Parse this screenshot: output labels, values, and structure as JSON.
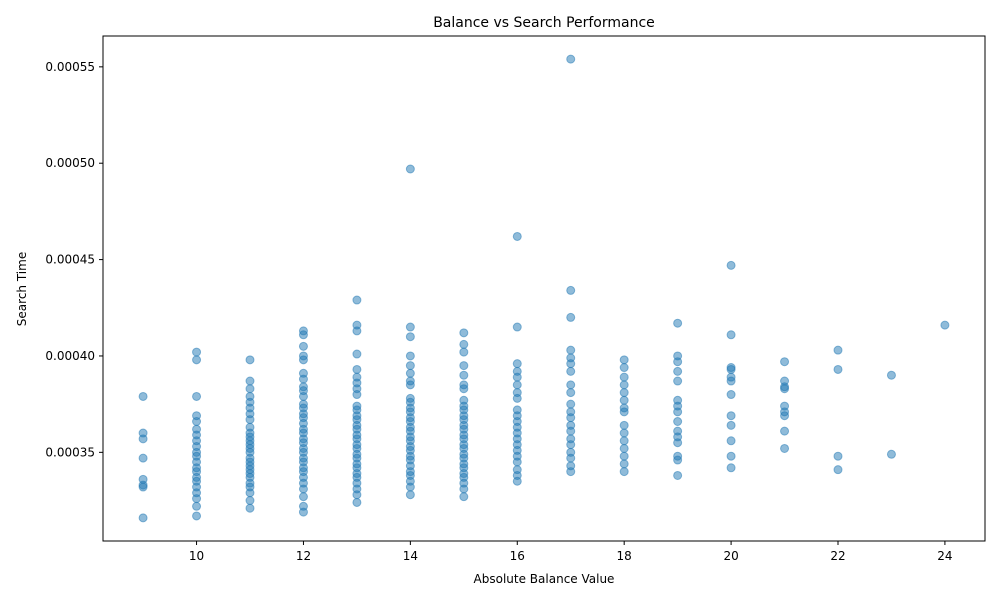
{
  "chart_data": {
    "type": "scatter",
    "title": "Balance vs Search Performance",
    "xlabel": "Absolute Balance Value",
    "ylabel": "Search Time",
    "xlim": [
      8.25,
      24.75
    ],
    "ylim": [
      0.000304,
      0.000566
    ],
    "xticks": [
      10,
      12,
      14,
      16,
      18,
      20,
      22,
      24
    ],
    "xtick_labels": [
      "10",
      "12",
      "14",
      "16",
      "18",
      "20",
      "22",
      "24"
    ],
    "yticks": [
      0.00035,
      0.0004,
      0.00045,
      0.0005,
      0.00055
    ],
    "ytick_labels": [
      "0.00035",
      "0.00040",
      "0.00045",
      "0.00050",
      "0.00055"
    ],
    "grid": false,
    "legend": "none",
    "marker_color": "#1f77b4",
    "marker_alpha": 0.5,
    "points": [
      [
        9,
        0.000316
      ],
      [
        9,
        0.000332
      ],
      [
        9,
        0.000333
      ],
      [
        9,
        0.000336
      ],
      [
        9,
        0.000347
      ],
      [
        9,
        0.000357
      ],
      [
        9,
        0.00036
      ],
      [
        9,
        0.000379
      ],
      [
        10,
        0.000317
      ],
      [
        10,
        0.000322
      ],
      [
        10,
        0.000326
      ],
      [
        10,
        0.000329
      ],
      [
        10,
        0.000332
      ],
      [
        10,
        0.000335
      ],
      [
        10,
        0.000337
      ],
      [
        10,
        0.00034
      ],
      [
        10,
        0.000342
      ],
      [
        10,
        0.000345
      ],
      [
        10,
        0.000348
      ],
      [
        10,
        0.00035
      ],
      [
        10,
        0.000353
      ],
      [
        10,
        0.000356
      ],
      [
        10,
        0.000359
      ],
      [
        10,
        0.000362
      ],
      [
        10,
        0.000366
      ],
      [
        10,
        0.000369
      ],
      [
        10,
        0.000379
      ],
      [
        10,
        0.000398
      ],
      [
        10,
        0.000402
      ],
      [
        11,
        0.000321
      ],
      [
        11,
        0.000325
      ],
      [
        11,
        0.000329
      ],
      [
        11,
        0.000332
      ],
      [
        11,
        0.000334
      ],
      [
        11,
        0.000337
      ],
      [
        11,
        0.000339
      ],
      [
        11,
        0.000341
      ],
      [
        11,
        0.000343
      ],
      [
        11,
        0.000345
      ],
      [
        11,
        0.000347
      ],
      [
        11,
        0.00035
      ],
      [
        11,
        0.000352
      ],
      [
        11,
        0.000354
      ],
      [
        11,
        0.000356
      ],
      [
        11,
        0.000358
      ],
      [
        11,
        0.00036
      ],
      [
        11,
        0.000363
      ],
      [
        11,
        0.000367
      ],
      [
        11,
        0.00037
      ],
      [
        11,
        0.000373
      ],
      [
        11,
        0.000376
      ],
      [
        11,
        0.000379
      ],
      [
        11,
        0.000383
      ],
      [
        11,
        0.000387
      ],
      [
        11,
        0.000398
      ],
      [
        12,
        0.000319
      ],
      [
        12,
        0.000322
      ],
      [
        12,
        0.000327
      ],
      [
        12,
        0.000331
      ],
      [
        12,
        0.000334
      ],
      [
        12,
        0.000337
      ],
      [
        12,
        0.00034
      ],
      [
        12,
        0.000342
      ],
      [
        12,
        0.000345
      ],
      [
        12,
        0.000347
      ],
      [
        12,
        0.00035
      ],
      [
        12,
        0.000352
      ],
      [
        12,
        0.000355
      ],
      [
        12,
        0.000357
      ],
      [
        12,
        0.00036
      ],
      [
        12,
        0.000362
      ],
      [
        12,
        0.000365
      ],
      [
        12,
        0.000368
      ],
      [
        12,
        0.00037
      ],
      [
        12,
        0.000373
      ],
      [
        12,
        0.000375
      ],
      [
        12,
        0.000379
      ],
      [
        12,
        0.000382
      ],
      [
        12,
        0.000384
      ],
      [
        12,
        0.000388
      ],
      [
        12,
        0.000391
      ],
      [
        12,
        0.000398
      ],
      [
        12,
        0.0004
      ],
      [
        12,
        0.000405
      ],
      [
        12,
        0.000411
      ],
      [
        12,
        0.000413
      ],
      [
        13,
        0.000324
      ],
      [
        13,
        0.000328
      ],
      [
        13,
        0.000331
      ],
      [
        13,
        0.000334
      ],
      [
        13,
        0.000337
      ],
      [
        13,
        0.000339
      ],
      [
        13,
        0.000342
      ],
      [
        13,
        0.000344
      ],
      [
        13,
        0.000347
      ],
      [
        13,
        0.000349
      ],
      [
        13,
        0.000352
      ],
      [
        13,
        0.000354
      ],
      [
        13,
        0.000357
      ],
      [
        13,
        0.000359
      ],
      [
        13,
        0.000362
      ],
      [
        13,
        0.000364
      ],
      [
        13,
        0.000367
      ],
      [
        13,
        0.000369
      ],
      [
        13,
        0.000372
      ],
      [
        13,
        0.000374
      ],
      [
        13,
        0.00038
      ],
      [
        13,
        0.000383
      ],
      [
        13,
        0.000386
      ],
      [
        13,
        0.000389
      ],
      [
        13,
        0.000393
      ],
      [
        13,
        0.000401
      ],
      [
        13,
        0.000413
      ],
      [
        13,
        0.000416
      ],
      [
        13,
        0.000429
      ],
      [
        14,
        0.000328
      ],
      [
        14,
        0.000332
      ],
      [
        14,
        0.000335
      ],
      [
        14,
        0.000338
      ],
      [
        14,
        0.00034
      ],
      [
        14,
        0.000343
      ],
      [
        14,
        0.000346
      ],
      [
        14,
        0.000348
      ],
      [
        14,
        0.000351
      ],
      [
        14,
        0.000353
      ],
      [
        14,
        0.000356
      ],
      [
        14,
        0.000358
      ],
      [
        14,
        0.000361
      ],
      [
        14,
        0.000363
      ],
      [
        14,
        0.000366
      ],
      [
        14,
        0.000368
      ],
      [
        14,
        0.000371
      ],
      [
        14,
        0.000373
      ],
      [
        14,
        0.000376
      ],
      [
        14,
        0.000378
      ],
      [
        14,
        0.000385
      ],
      [
        14,
        0.000387
      ],
      [
        14,
        0.000391
      ],
      [
        14,
        0.000395
      ],
      [
        14,
        0.0004
      ],
      [
        14,
        0.00041
      ],
      [
        14,
        0.000415
      ],
      [
        14,
        0.000497
      ],
      [
        15,
        0.000327
      ],
      [
        15,
        0.000331
      ],
      [
        15,
        0.000334
      ],
      [
        15,
        0.000337
      ],
      [
        15,
        0.000339
      ],
      [
        15,
        0.000342
      ],
      [
        15,
        0.000344
      ],
      [
        15,
        0.000347
      ],
      [
        15,
        0.000349
      ],
      [
        15,
        0.000352
      ],
      [
        15,
        0.000354
      ],
      [
        15,
        0.000357
      ],
      [
        15,
        0.000359
      ],
      [
        15,
        0.000362
      ],
      [
        15,
        0.000364
      ],
      [
        15,
        0.000367
      ],
      [
        15,
        0.000369
      ],
      [
        15,
        0.000372
      ],
      [
        15,
        0.000374
      ],
      [
        15,
        0.000377
      ],
      [
        15,
        0.000383
      ],
      [
        15,
        0.000385
      ],
      [
        15,
        0.00039
      ],
      [
        15,
        0.000395
      ],
      [
        15,
        0.000402
      ],
      [
        15,
        0.000406
      ],
      [
        15,
        0.000412
      ],
      [
        16,
        0.000335
      ],
      [
        16,
        0.000338
      ],
      [
        16,
        0.000341
      ],
      [
        16,
        0.000345
      ],
      [
        16,
        0.000348
      ],
      [
        16,
        0.000351
      ],
      [
        16,
        0.000354
      ],
      [
        16,
        0.000357
      ],
      [
        16,
        0.00036
      ],
      [
        16,
        0.000363
      ],
      [
        16,
        0.000366
      ],
      [
        16,
        0.000369
      ],
      [
        16,
        0.000372
      ],
      [
        16,
        0.000378
      ],
      [
        16,
        0.000381
      ],
      [
        16,
        0.000385
      ],
      [
        16,
        0.000389
      ],
      [
        16,
        0.000392
      ],
      [
        16,
        0.000396
      ],
      [
        16,
        0.000415
      ],
      [
        16,
        0.000462
      ],
      [
        17,
        0.00034
      ],
      [
        17,
        0.000343
      ],
      [
        17,
        0.000347
      ],
      [
        17,
        0.00035
      ],
      [
        17,
        0.000354
      ],
      [
        17,
        0.000357
      ],
      [
        17,
        0.000361
      ],
      [
        17,
        0.000364
      ],
      [
        17,
        0.000368
      ],
      [
        17,
        0.000371
      ],
      [
        17,
        0.000375
      ],
      [
        17,
        0.000381
      ],
      [
        17,
        0.000385
      ],
      [
        17,
        0.000392
      ],
      [
        17,
        0.000396
      ],
      [
        17,
        0.000399
      ],
      [
        17,
        0.000403
      ],
      [
        17,
        0.00042
      ],
      [
        17,
        0.000434
      ],
      [
        17,
        0.000554
      ],
      [
        18,
        0.00034
      ],
      [
        18,
        0.000344
      ],
      [
        18,
        0.000348
      ],
      [
        18,
        0.000352
      ],
      [
        18,
        0.000356
      ],
      [
        18,
        0.00036
      ],
      [
        18,
        0.000364
      ],
      [
        18,
        0.000371
      ],
      [
        18,
        0.000373
      ],
      [
        18,
        0.000377
      ],
      [
        18,
        0.000381
      ],
      [
        18,
        0.000385
      ],
      [
        18,
        0.000389
      ],
      [
        18,
        0.000394
      ],
      [
        18,
        0.000398
      ],
      [
        19,
        0.000338
      ],
      [
        19,
        0.000346
      ],
      [
        19,
        0.000348
      ],
      [
        19,
        0.000355
      ],
      [
        19,
        0.000358
      ],
      [
        19,
        0.000361
      ],
      [
        19,
        0.000366
      ],
      [
        19,
        0.000371
      ],
      [
        19,
        0.000374
      ],
      [
        19,
        0.000377
      ],
      [
        19,
        0.000387
      ],
      [
        19,
        0.000392
      ],
      [
        19,
        0.000397
      ],
      [
        19,
        0.0004
      ],
      [
        19,
        0.000417
      ],
      [
        20,
        0.000342
      ],
      [
        20,
        0.000348
      ],
      [
        20,
        0.000356
      ],
      [
        20,
        0.000364
      ],
      [
        20,
        0.000369
      ],
      [
        20,
        0.00038
      ],
      [
        20,
        0.000387
      ],
      [
        20,
        0.000389
      ],
      [
        20,
        0.000393
      ],
      [
        20,
        0.000394
      ],
      [
        20,
        0.000411
      ],
      [
        20,
        0.000447
      ],
      [
        21,
        0.000352
      ],
      [
        21,
        0.000361
      ],
      [
        21,
        0.000369
      ],
      [
        21,
        0.000371
      ],
      [
        21,
        0.000374
      ],
      [
        21,
        0.000383
      ],
      [
        21,
        0.000384
      ],
      [
        21,
        0.000387
      ],
      [
        21,
        0.000397
      ],
      [
        22,
        0.000341
      ],
      [
        22,
        0.000348
      ],
      [
        22,
        0.000393
      ],
      [
        22,
        0.000403
      ],
      [
        23,
        0.000349
      ],
      [
        23,
        0.00039
      ],
      [
        24,
        0.000416
      ]
    ]
  }
}
